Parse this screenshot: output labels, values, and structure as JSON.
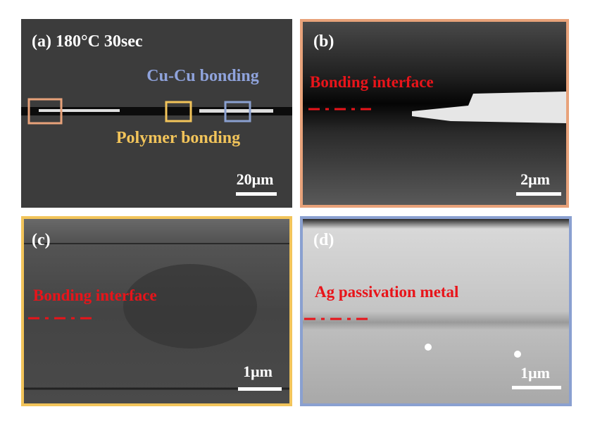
{
  "panels": [
    {
      "label": "(a) 180°C 30sec",
      "annotations": [
        "Cu-Cu bonding",
        "Polymer bonding"
      ],
      "scale_bar": "20μm"
    },
    {
      "label": "(b)",
      "annotations": [
        "Bonding interface"
      ],
      "scale_bar": "2μm"
    },
    {
      "label": "(c)",
      "annotations": [
        "Bonding interface"
      ],
      "scale_bar": "1μm"
    },
    {
      "label": "(d)",
      "annotations": [
        "Ag passivation metal"
      ],
      "scale_bar": "1μm"
    }
  ]
}
